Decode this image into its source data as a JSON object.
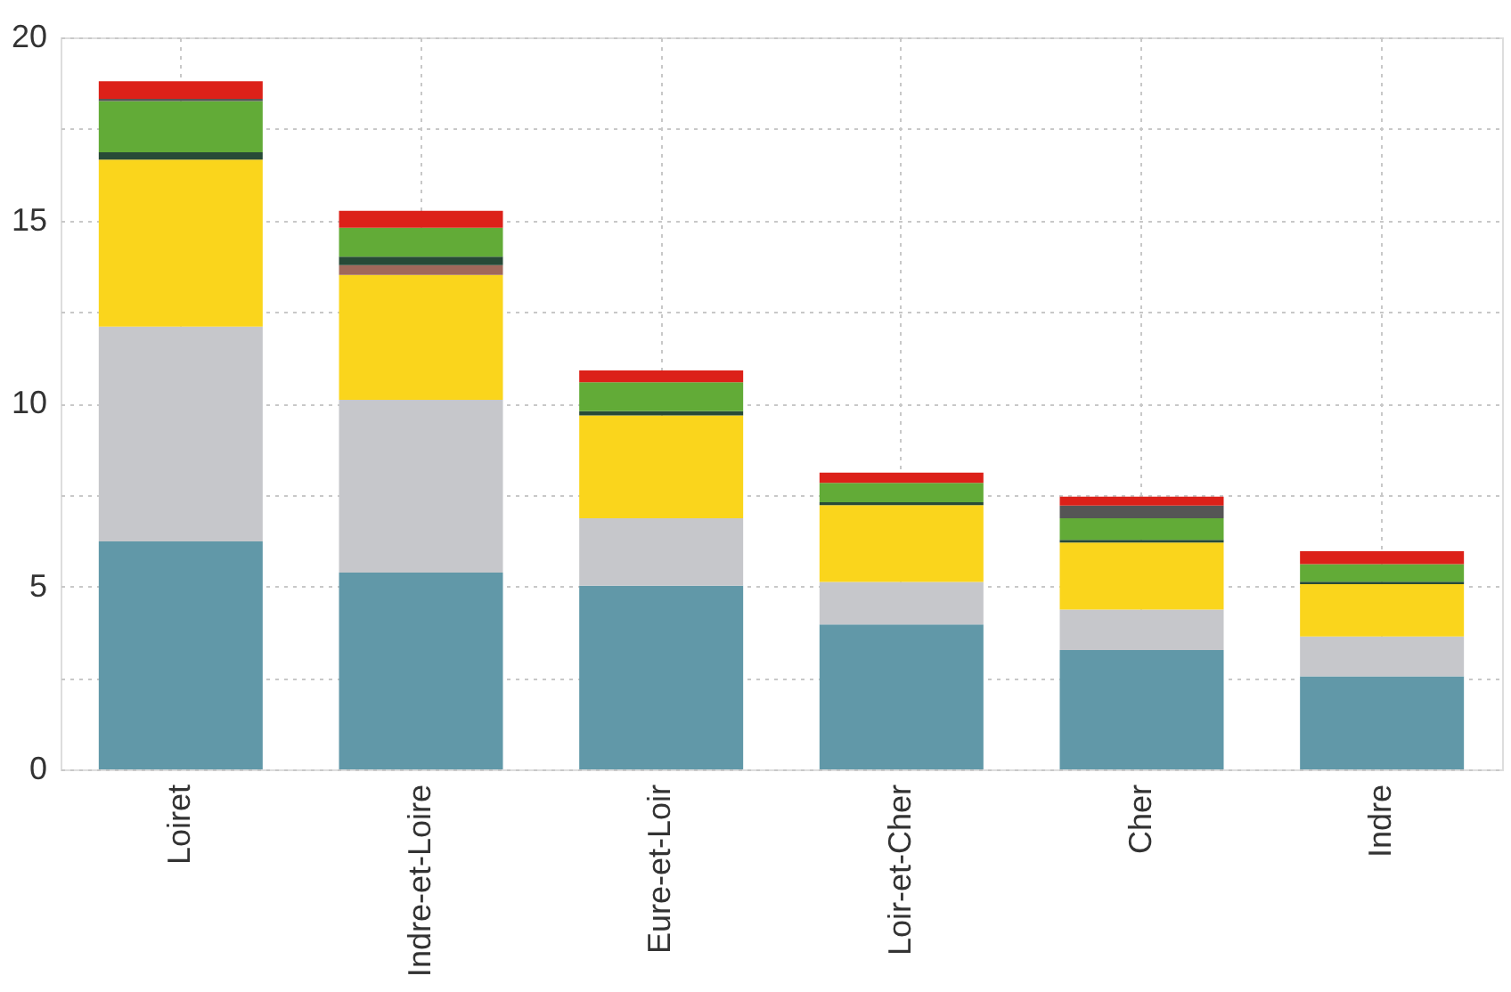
{
  "chart_data": {
    "type": "bar",
    "stacked": true,
    "categories": [
      "Loiret",
      "Indre-et-Loire",
      "Eure-et-Loir",
      "Loir-et-Cher",
      "Cher",
      "Indre"
    ],
    "series": [
      {
        "color": "#6198a8",
        "values": [
          6.23,
          5.38,
          5.02,
          3.96,
          3.26,
          2.54
        ]
      },
      {
        "color": "#c6c7cb",
        "values": [
          5.87,
          4.72,
          1.84,
          1.16,
          1.11,
          1.09
        ]
      },
      {
        "color": "#fad51c",
        "values": [
          4.56,
          3.41,
          2.81,
          2.1,
          1.83,
          1.43
        ]
      },
      {
        "color": "#a0685a",
        "values": [
          null,
          0.27,
          null,
          null,
          null,
          null
        ]
      },
      {
        "color": "#274a37",
        "values": [
          0.2,
          0.23,
          0.12,
          0.08,
          0.07,
          0.07
        ]
      },
      {
        "color": "#62ab37",
        "values": [
          1.4,
          0.79,
          0.79,
          0.53,
          0.59,
          0.48
        ]
      },
      {
        "color": "#555555",
        "values": [
          0.06,
          null,
          null,
          null,
          0.35,
          null
        ]
      },
      {
        "color": "#dc2119",
        "values": [
          0.48,
          0.46,
          0.32,
          0.28,
          0.24,
          0.35
        ]
      }
    ],
    "ylim": [
      0,
      20
    ],
    "yticks": [
      0,
      {
        "value": 2.5,
        "label": null
      },
      5,
      {
        "value": 7.5,
        "label": null
      },
      10,
      {
        "value": 12.5,
        "label": null
      },
      15,
      {
        "value": 17.5,
        "label": null
      },
      20
    ],
    "grid": true,
    "legend": false
  }
}
